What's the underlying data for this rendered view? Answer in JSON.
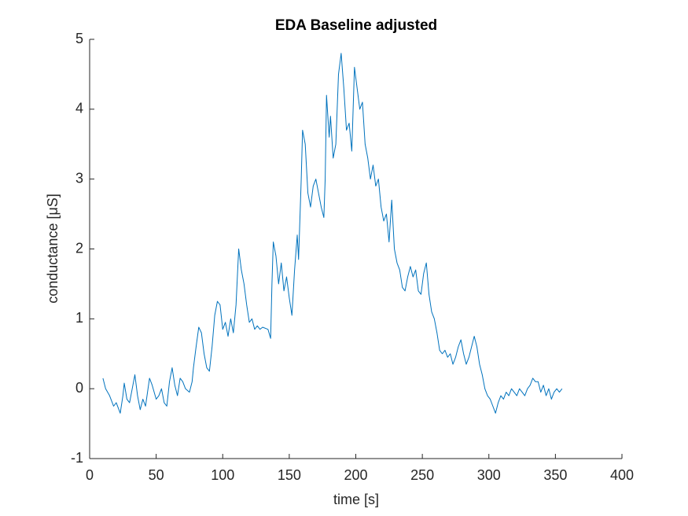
{
  "chart_data": {
    "type": "line",
    "title": "EDA Baseline adjusted",
    "xlabel": "time [s]",
    "ylabel": "conductance [μS]",
    "color": "#0072bd",
    "x": [
      10,
      12,
      15,
      18,
      20,
      23,
      25,
      26,
      28,
      30,
      32,
      34,
      36,
      38,
      40,
      42,
      45,
      47,
      50,
      52,
      54,
      56,
      58,
      60,
      62,
      64,
      66,
      68,
      70,
      72,
      75,
      77,
      78,
      80,
      82,
      84,
      86,
      88,
      90,
      92,
      94,
      96,
      98,
      100,
      102,
      104,
      106,
      108,
      110,
      112,
      114,
      116,
      118,
      120,
      122,
      124,
      126,
      128,
      130,
      134,
      136,
      137,
      138,
      140,
      142,
      144,
      146,
      148,
      150,
      152,
      154,
      156,
      157,
      159,
      160,
      162,
      164,
      166,
      168,
      170,
      172,
      174,
      176,
      177,
      178,
      180,
      181,
      183,
      185,
      187,
      189,
      191,
      193,
      195,
      197,
      199,
      201,
      203,
      205,
      207,
      209,
      211,
      213,
      215,
      217,
      219,
      221,
      223,
      225,
      227,
      229,
      231,
      233,
      235,
      237,
      239,
      241,
      243,
      245,
      247,
      249,
      251,
      253,
      255,
      257,
      259,
      261,
      263,
      265,
      267,
      269,
      271,
      273,
      275,
      277,
      279,
      281,
      283,
      285,
      287,
      289,
      291,
      293,
      295,
      297,
      299,
      301,
      303,
      305,
      307,
      309,
      311,
      313,
      315,
      317,
      319,
      321,
      323,
      325,
      327,
      329,
      331,
      333,
      335,
      337,
      339,
      341,
      343,
      345,
      347,
      349,
      351,
      353,
      355
    ],
    "values": [
      0.15,
      0.0,
      -0.1,
      -0.25,
      -0.2,
      -0.35,
      -0.1,
      0.08,
      -0.15,
      -0.2,
      0.0,
      0.2,
      -0.1,
      -0.3,
      -0.15,
      -0.25,
      0.15,
      0.05,
      -0.15,
      -0.1,
      0.0,
      -0.2,
      -0.25,
      0.1,
      0.3,
      0.05,
      -0.1,
      0.15,
      0.1,
      0.0,
      -0.05,
      0.1,
      0.3,
      0.6,
      0.88,
      0.8,
      0.5,
      0.3,
      0.25,
      0.6,
      1.05,
      1.25,
      1.2,
      0.85,
      0.95,
      0.75,
      1.0,
      0.8,
      1.2,
      2.0,
      1.7,
      1.5,
      1.2,
      0.95,
      1.0,
      0.85,
      0.9,
      0.85,
      0.88,
      0.85,
      0.72,
      1.5,
      2.1,
      1.9,
      1.5,
      1.8,
      1.4,
      1.6,
      1.3,
      1.05,
      1.7,
      2.2,
      1.85,
      3.0,
      3.7,
      3.5,
      2.8,
      2.6,
      2.9,
      3.0,
      2.8,
      2.6,
      2.45,
      3.0,
      4.2,
      3.6,
      3.9,
      3.3,
      3.5,
      4.5,
      4.8,
      4.3,
      3.7,
      3.8,
      3.4,
      4.6,
      4.3,
      4.0,
      4.1,
      3.5,
      3.3,
      3.0,
      3.2,
      2.9,
      3.0,
      2.6,
      2.4,
      2.5,
      2.1,
      2.7,
      2.0,
      1.8,
      1.7,
      1.45,
      1.4,
      1.6,
      1.75,
      1.6,
      1.7,
      1.4,
      1.35,
      1.65,
      1.8,
      1.35,
      1.1,
      1.0,
      0.8,
      0.55,
      0.5,
      0.55,
      0.45,
      0.5,
      0.35,
      0.45,
      0.6,
      0.7,
      0.5,
      0.35,
      0.45,
      0.6,
      0.75,
      0.6,
      0.35,
      0.2,
      0.0,
      -0.1,
      -0.15,
      -0.25,
      -0.35,
      -0.2,
      -0.1,
      -0.15,
      -0.05,
      -0.1,
      0.0,
      -0.05,
      -0.1,
      0.0,
      -0.05,
      -0.1,
      0.0,
      0.05,
      0.15,
      0.1,
      0.1,
      -0.05,
      0.05,
      -0.1,
      0.0,
      -0.15,
      -0.05,
      0.0,
      -0.05,
      0.0
    ],
    "xlim": [
      0,
      400
    ],
    "xticks": [
      0,
      50,
      100,
      150,
      200,
      250,
      300,
      350,
      400
    ],
    "ylim": [
      -1,
      5
    ],
    "yticks": [
      -1,
      0,
      1,
      2,
      3,
      4,
      5
    ]
  }
}
